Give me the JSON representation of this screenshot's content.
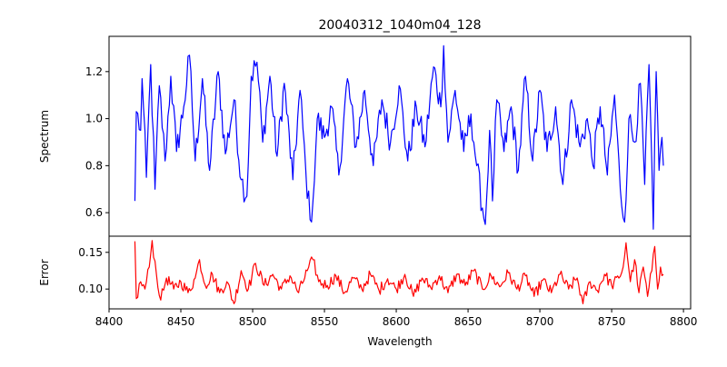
{
  "chart_data": [
    {
      "type": "line",
      "title": "20040312_1040m04_128",
      "xlabel": "",
      "ylabel": "Spectrum",
      "xlim": [
        8400,
        8805
      ],
      "ylim": [
        0.5,
        1.35
      ],
      "yticks": [
        0.6,
        0.8,
        1.0,
        1.2
      ],
      "ytick_labels": [
        "0.6",
        "0.8",
        "1.0",
        "1.2"
      ],
      "grid": false,
      "color": "#0000ff",
      "x_range": [
        8418,
        8786
      ],
      "keypoints": [
        [
          8418,
          0.65
        ],
        [
          8419,
          1.03
        ],
        [
          8422,
          0.95
        ],
        [
          8423,
          1.17
        ],
        [
          8426,
          0.75
        ],
        [
          8429,
          1.23
        ],
        [
          8432,
          0.7
        ],
        [
          8435,
          1.14
        ],
        [
          8439,
          0.82
        ],
        [
          8443,
          1.18
        ],
        [
          8447,
          0.86
        ],
        [
          8452,
          1.05
        ],
        [
          8456,
          1.27
        ],
        [
          8460,
          0.82
        ],
        [
          8465,
          1.17
        ],
        [
          8470,
          0.78
        ],
        [
          8476,
          1.2
        ],
        [
          8481,
          0.85
        ],
        [
          8487,
          1.08
        ],
        [
          8492,
          0.74
        ],
        [
          8496,
          0.67
        ],
        [
          8499,
          1.18
        ],
        [
          8503,
          1.24
        ],
        [
          8507,
          0.9
        ],
        [
          8512,
          1.18
        ],
        [
          8517,
          0.84
        ],
        [
          8522,
          1.15
        ],
        [
          8528,
          0.74
        ],
        [
          8533,
          1.12
        ],
        [
          8537,
          0.78
        ],
        [
          8540,
          0.57
        ],
        [
          8542,
          0.65
        ],
        [
          8545,
          1.0
        ],
        [
          8550,
          0.92
        ],
        [
          8555,
          1.05
        ],
        [
          8560,
          0.76
        ],
        [
          8566,
          1.17
        ],
        [
          8572,
          0.88
        ],
        [
          8578,
          1.12
        ],
        [
          8584,
          0.8
        ],
        [
          8590,
          1.08
        ],
        [
          8596,
          0.9
        ],
        [
          8602,
          1.14
        ],
        [
          8608,
          0.82
        ],
        [
          8614,
          1.05
        ],
        [
          8620,
          0.88
        ],
        [
          8626,
          1.22
        ],
        [
          8631,
          1.05
        ],
        [
          8633,
          1.31
        ],
        [
          8636,
          0.9
        ],
        [
          8641,
          1.12
        ],
        [
          8647,
          0.86
        ],
        [
          8652,
          1.02
        ],
        [
          8656,
          0.8
        ],
        [
          8660,
          0.62
        ],
        [
          8662,
          0.55
        ],
        [
          8665,
          0.95
        ],
        [
          8667,
          0.65
        ],
        [
          8670,
          1.08
        ],
        [
          8675,
          0.86
        ],
        [
          8680,
          1.05
        ],
        [
          8685,
          0.78
        ],
        [
          8690,
          1.18
        ],
        [
          8695,
          0.82
        ],
        [
          8700,
          1.12
        ],
        [
          8705,
          0.86
        ],
        [
          8711,
          1.05
        ],
        [
          8716,
          0.72
        ],
        [
          8722,
          1.08
        ],
        [
          8728,
          0.88
        ],
        [
          8733,
          1.0
        ],
        [
          8737,
          0.8
        ],
        [
          8742,
          1.05
        ],
        [
          8747,
          0.76
        ],
        [
          8752,
          1.1
        ],
        [
          8756,
          0.7
        ],
        [
          8759,
          0.56
        ],
        [
          8762,
          1.0
        ],
        [
          8766,
          0.9
        ],
        [
          8770,
          1.15
        ],
        [
          8773,
          0.72
        ],
        [
          8776,
          1.23
        ],
        [
          8779,
          0.53
        ],
        [
          8781,
          1.2
        ],
        [
          8783,
          0.78
        ],
        [
          8785,
          0.92
        ],
        [
          8786,
          0.8
        ]
      ]
    },
    {
      "type": "line",
      "title": "",
      "xlabel": "Wavelength",
      "ylabel": "Error",
      "xlim": [
        8400,
        8805
      ],
      "ylim": [
        0.073,
        0.172
      ],
      "xticks": [
        8400,
        8450,
        8500,
        8550,
        8600,
        8650,
        8700,
        8750,
        8800
      ],
      "xtick_labels": [
        "8400",
        "8450",
        "8500",
        "8550",
        "8600",
        "8650",
        "8700",
        "8750",
        "8800"
      ],
      "yticks": [
        0.1,
        0.15
      ],
      "ytick_labels": [
        "0.10",
        "0.15"
      ],
      "grid": false,
      "color": "#ff0000",
      "x_range": [
        8418,
        8786
      ],
      "keypoints": [
        [
          8418,
          0.165
        ],
        [
          8419,
          0.087
        ],
        [
          8422,
          0.11
        ],
        [
          8425,
          0.1
        ],
        [
          8428,
          0.13
        ],
        [
          8430,
          0.166
        ],
        [
          8433,
          0.12
        ],
        [
          8436,
          0.085
        ],
        [
          8440,
          0.115
        ],
        [
          8445,
          0.1
        ],
        [
          8450,
          0.11
        ],
        [
          8455,
          0.095
        ],
        [
          8460,
          0.115
        ],
        [
          8463,
          0.14
        ],
        [
          8467,
          0.105
        ],
        [
          8472,
          0.12
        ],
        [
          8477,
          0.095
        ],
        [
          8482,
          0.11
        ],
        [
          8487,
          0.08
        ],
        [
          8492,
          0.125
        ],
        [
          8497,
          0.1
        ],
        [
          8502,
          0.135
        ],
        [
          8508,
          0.105
        ],
        [
          8514,
          0.12
        ],
        [
          8520,
          0.1
        ],
        [
          8526,
          0.118
        ],
        [
          8532,
          0.095
        ],
        [
          8538,
          0.125
        ],
        [
          8542,
          0.14
        ],
        [
          8546,
          0.11
        ],
        [
          8552,
          0.105
        ],
        [
          8558,
          0.118
        ],
        [
          8564,
          0.095
        ],
        [
          8570,
          0.115
        ],
        [
          8576,
          0.1
        ],
        [
          8582,
          0.12
        ],
        [
          8588,
          0.098
        ],
        [
          8594,
          0.114
        ],
        [
          8600,
          0.1
        ],
        [
          8606,
          0.12
        ],
        [
          8612,
          0.09
        ],
        [
          8618,
          0.115
        ],
        [
          8624,
          0.102
        ],
        [
          8630,
          0.118
        ],
        [
          8636,
          0.095
        ],
        [
          8642,
          0.12
        ],
        [
          8648,
          0.105
        ],
        [
          8654,
          0.125
        ],
        [
          8660,
          0.1
        ],
        [
          8666,
          0.118
        ],
        [
          8672,
          0.103
        ],
        [
          8678,
          0.122
        ],
        [
          8684,
          0.1
        ],
        [
          8690,
          0.118
        ],
        [
          8696,
          0.09
        ],
        [
          8702,
          0.112
        ],
        [
          8708,
          0.095
        ],
        [
          8714,
          0.12
        ],
        [
          8720,
          0.1
        ],
        [
          8726,
          0.115
        ],
        [
          8730,
          0.08
        ],
        [
          8735,
          0.11
        ],
        [
          8740,
          0.098
        ],
        [
          8745,
          0.12
        ],
        [
          8750,
          0.105
        ],
        [
          8755,
          0.115
        ],
        [
          8758,
          0.13
        ],
        [
          8760,
          0.163
        ],
        [
          8763,
          0.11
        ],
        [
          8766,
          0.14
        ],
        [
          8769,
          0.095
        ],
        [
          8772,
          0.13
        ],
        [
          8775,
          0.09
        ],
        [
          8778,
          0.125
        ],
        [
          8780,
          0.158
        ],
        [
          8782,
          0.1
        ],
        [
          8784,
          0.13
        ],
        [
          8786,
          0.12
        ]
      ]
    }
  ]
}
